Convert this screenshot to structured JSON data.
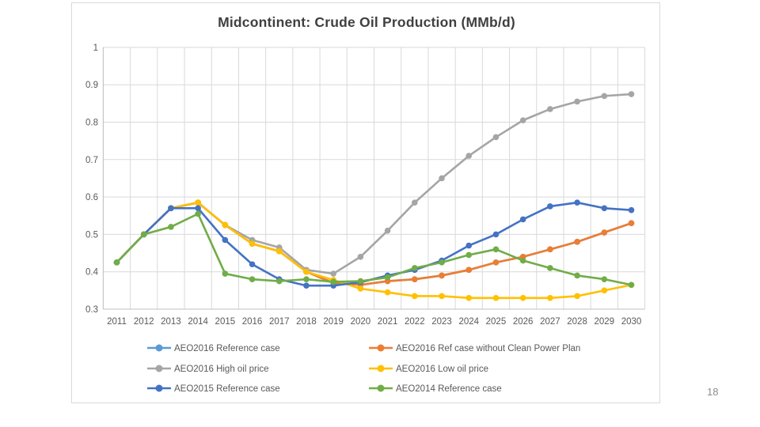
{
  "page": {
    "number_label": "18"
  },
  "chart_data": {
    "type": "line",
    "title": "Midcontinent: Crude Oil Production (MMb/d)",
    "x": [
      2011,
      2012,
      2013,
      2014,
      2015,
      2016,
      2017,
      2018,
      2019,
      2020,
      2021,
      2022,
      2023,
      2024,
      2025,
      2026,
      2027,
      2028,
      2029,
      2030
    ],
    "xlabel": "",
    "ylabel": "",
    "ylim": [
      0.3,
      1.0
    ],
    "ytick_values": [
      0.3,
      0.4,
      0.5,
      0.6,
      0.7,
      0.8,
      0.9,
      1.0
    ],
    "ytick_labels": [
      "0.3",
      "0.4",
      "0.5",
      "0.6",
      "0.7",
      "0.8",
      "0.9",
      "1"
    ],
    "grid": true,
    "legend_position": "bottom-two-columns",
    "gridline_color": "#d9d9d9",
    "axis_line_color": "#c0c0c0",
    "label_color": "#595959",
    "title_color": "#404040",
    "series": [
      {
        "name": "AEO2016 Reference case",
        "color": "#5B9BD5",
        "values": [
          0.425,
          0.5,
          0.57,
          0.585,
          0.525,
          0.475,
          0.455,
          0.4,
          0.37,
          0.365,
          0.375,
          0.38,
          0.39,
          0.405,
          0.425,
          0.44,
          0.46,
          0.48,
          0.505,
          0.53
        ]
      },
      {
        "name": "AEO2016 Ref case without Clean Power Plan",
        "color": "#ED7D31",
        "values": [
          0.425,
          0.5,
          0.57,
          0.585,
          0.525,
          0.475,
          0.455,
          0.4,
          0.37,
          0.365,
          0.375,
          0.38,
          0.39,
          0.405,
          0.425,
          0.44,
          0.46,
          0.48,
          0.505,
          0.53
        ]
      },
      {
        "name": "AEO2016 High oil price",
        "color": "#A5A5A5",
        "values": [
          0.425,
          0.5,
          0.57,
          0.585,
          0.525,
          0.485,
          0.465,
          0.405,
          0.395,
          0.44,
          0.51,
          0.585,
          0.65,
          0.71,
          0.76,
          0.805,
          0.835,
          0.855,
          0.87,
          0.875
        ]
      },
      {
        "name": "AEO2016 Low oil price",
        "color": "#FFC000",
        "values": [
          0.425,
          0.5,
          0.57,
          0.585,
          0.525,
          0.475,
          0.455,
          0.4,
          0.378,
          0.355,
          0.345,
          0.335,
          0.335,
          0.33,
          0.33,
          0.33,
          0.33,
          0.335,
          0.35,
          0.365
        ]
      },
      {
        "name": "AEO2015 Reference case",
        "color": "#4472C4",
        "values": [
          0.425,
          0.5,
          0.57,
          0.57,
          0.485,
          0.42,
          0.38,
          0.363,
          0.363,
          0.372,
          0.39,
          0.405,
          0.43,
          0.47,
          0.5,
          0.54,
          0.575,
          0.585,
          0.57,
          0.565
        ]
      },
      {
        "name": "AEO2014 Reference case",
        "color": "#70AD47",
        "values": [
          0.425,
          0.5,
          0.52,
          0.555,
          0.395,
          0.38,
          0.375,
          0.38,
          0.373,
          0.375,
          0.385,
          0.41,
          0.425,
          0.445,
          0.46,
          0.43,
          0.41,
          0.39,
          0.38,
          0.365
        ]
      }
    ]
  }
}
